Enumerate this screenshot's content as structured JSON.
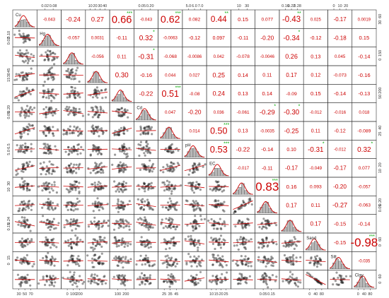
{
  "chart_data": {
    "type": "scatter",
    "variables": [
      "Cu",
      "Hg",
      "",
      "",
      "",
      "Cd",
      "",
      "pH",
      "EC",
      "",
      "",
      "",
      "Sand",
      "Silt",
      "Clay"
    ],
    "correlations": [
      {
        "i": 0,
        "j": 1,
        "value": "-0.043",
        "stars": ""
      },
      {
        "i": 0,
        "j": 2,
        "value": "-0.24",
        "stars": ""
      },
      {
        "i": 0,
        "j": 3,
        "value": "0.27",
        "stars": ""
      },
      {
        "i": 0,
        "j": 4,
        "value": "0.66",
        "stars": "***"
      },
      {
        "i": 0,
        "j": 5,
        "value": "-0.043",
        "stars": ""
      },
      {
        "i": 0,
        "j": 6,
        "value": "0.62",
        "stars": "***"
      },
      {
        "i": 0,
        "j": 7,
        "value": "0.082",
        "stars": ""
      },
      {
        "i": 0,
        "j": 8,
        "value": "0.44",
        "stars": "**"
      },
      {
        "i": 0,
        "j": 9,
        "value": "0.15",
        "stars": ""
      },
      {
        "i": 0,
        "j": 10,
        "value": "0.077",
        "stars": ""
      },
      {
        "i": 0,
        "j": 11,
        "value": "-0.43",
        "stars": "**"
      },
      {
        "i": 0,
        "j": 12,
        "value": "0.025",
        "stars": ""
      },
      {
        "i": 0,
        "j": 13,
        "value": "-0.17",
        "stars": ""
      },
      {
        "i": 0,
        "j": 14,
        "value": "0.0019",
        "stars": ""
      },
      {
        "i": 1,
        "j": 2,
        "value": "-0.057",
        "stars": ""
      },
      {
        "i": 1,
        "j": 3,
        "value": "0.0031",
        "stars": ""
      },
      {
        "i": 1,
        "j": 4,
        "value": "-0.11",
        "stars": ""
      },
      {
        "i": 1,
        "j": 5,
        "value": "0.32",
        "stars": "*"
      },
      {
        "i": 1,
        "j": 6,
        "value": "-0.0063",
        "stars": ""
      },
      {
        "i": 1,
        "j": 7,
        "value": "-0.12",
        "stars": ""
      },
      {
        "i": 1,
        "j": 8,
        "value": "0.097",
        "stars": ""
      },
      {
        "i": 1,
        "j": 9,
        "value": "-0.11",
        "stars": ""
      },
      {
        "i": 1,
        "j": 10,
        "value": "-0.20",
        "stars": ""
      },
      {
        "i": 1,
        "j": 11,
        "value": "-0.34",
        "stars": "*"
      },
      {
        "i": 1,
        "j": 12,
        "value": "-0.12",
        "stars": ""
      },
      {
        "i": 1,
        "j": 13,
        "value": "-0.18",
        "stars": ""
      },
      {
        "i": 1,
        "j": 14,
        "value": "0.15",
        "stars": ""
      },
      {
        "i": 2,
        "j": 3,
        "value": "-0.056",
        "stars": ""
      },
      {
        "i": 2,
        "j": 4,
        "value": "0.11",
        "stars": ""
      },
      {
        "i": 2,
        "j": 5,
        "value": "-0.31",
        "stars": "*"
      },
      {
        "i": 2,
        "j": 6,
        "value": "-0.068",
        "stars": ""
      },
      {
        "i": 2,
        "j": 7,
        "value": "-0.0086",
        "stars": ""
      },
      {
        "i": 2,
        "j": 8,
        "value": "0.042",
        "stars": ""
      },
      {
        "i": 2,
        "j": 9,
        "value": "-0.078",
        "stars": ""
      },
      {
        "i": 2,
        "j": 10,
        "value": "-0.0046",
        "stars": ""
      },
      {
        "i": 2,
        "j": 11,
        "value": "0.26",
        "stars": ""
      },
      {
        "i": 2,
        "j": 12,
        "value": "0.13",
        "stars": ""
      },
      {
        "i": 2,
        "j": 13,
        "value": "0.045",
        "stars": ""
      },
      {
        "i": 2,
        "j": 14,
        "value": "-0.14",
        "stars": ""
      },
      {
        "i": 3,
        "j": 4,
        "value": "0.30",
        "stars": ""
      },
      {
        "i": 3,
        "j": 5,
        "value": "-0.16",
        "stars": ""
      },
      {
        "i": 3,
        "j": 6,
        "value": "0.044",
        "stars": ""
      },
      {
        "i": 3,
        "j": 7,
        "value": "0.027",
        "stars": ""
      },
      {
        "i": 3,
        "j": 8,
        "value": "0.25",
        "stars": ""
      },
      {
        "i": 3,
        "j": 9,
        "value": "0.14",
        "stars": ""
      },
      {
        "i": 3,
        "j": 10,
        "value": "0.11",
        "stars": ""
      },
      {
        "i": 3,
        "j": 11,
        "value": "0.17",
        "stars": ""
      },
      {
        "i": 3,
        "j": 12,
        "value": "0.12",
        "stars": ""
      },
      {
        "i": 3,
        "j": 13,
        "value": "-0.073",
        "stars": ""
      },
      {
        "i": 3,
        "j": 14,
        "value": "-0.16",
        "stars": ""
      },
      {
        "i": 4,
        "j": 5,
        "value": "-0.22",
        "stars": ""
      },
      {
        "i": 4,
        "j": 6,
        "value": "0.51",
        "stars": "***"
      },
      {
        "i": 4,
        "j": 7,
        "value": "-0.08",
        "stars": ""
      },
      {
        "i": 4,
        "j": 8,
        "value": "0.24",
        "stars": ""
      },
      {
        "i": 4,
        "j": 9,
        "value": "0.13",
        "stars": ""
      },
      {
        "i": 4,
        "j": 10,
        "value": "0.14",
        "stars": ""
      },
      {
        "i": 4,
        "j": 11,
        "value": "-0.09",
        "stars": ""
      },
      {
        "i": 4,
        "j": 12,
        "value": "0.15",
        "stars": ""
      },
      {
        "i": 4,
        "j": 13,
        "value": "-0.14",
        "stars": ""
      },
      {
        "i": 4,
        "j": 14,
        "value": "-0.13",
        "stars": ""
      },
      {
        "i": 5,
        "j": 6,
        "value": "0.047",
        "stars": ""
      },
      {
        "i": 5,
        "j": 7,
        "value": "-0.20",
        "stars": ""
      },
      {
        "i": 5,
        "j": 8,
        "value": "0.036",
        "stars": ""
      },
      {
        "i": 5,
        "j": 9,
        "value": "-0.061",
        "stars": ""
      },
      {
        "i": 5,
        "j": 10,
        "value": "-0.29",
        "stars": "*"
      },
      {
        "i": 5,
        "j": 11,
        "value": "-0.30",
        "stars": "*"
      },
      {
        "i": 5,
        "j": 12,
        "value": "-0.012",
        "stars": ""
      },
      {
        "i": 5,
        "j": 13,
        "value": "-0.016",
        "stars": ""
      },
      {
        "i": 5,
        "j": 14,
        "value": "0.018",
        "stars": ""
      },
      {
        "i": 6,
        "j": 7,
        "value": "0.014",
        "stars": ""
      },
      {
        "i": 6,
        "j": 8,
        "value": "0.50",
        "stars": "***"
      },
      {
        "i": 6,
        "j": 9,
        "value": "0.13",
        "stars": ""
      },
      {
        "i": 6,
        "j": 10,
        "value": "-0.0035",
        "stars": ""
      },
      {
        "i": 6,
        "j": 11,
        "value": "-0.25",
        "stars": ""
      },
      {
        "i": 6,
        "j": 12,
        "value": "0.11",
        "stars": ""
      },
      {
        "i": 6,
        "j": 13,
        "value": "-0.12",
        "stars": ""
      },
      {
        "i": 6,
        "j": 14,
        "value": "-0.089",
        "stars": ""
      },
      {
        "i": 7,
        "j": 8,
        "value": "0.53",
        "stars": "***"
      },
      {
        "i": 7,
        "j": 9,
        "value": "-0.22",
        "stars": ""
      },
      {
        "i": 7,
        "j": 10,
        "value": "-0.14",
        "stars": ""
      },
      {
        "i": 7,
        "j": 11,
        "value": "0.10",
        "stars": ""
      },
      {
        "i": 7,
        "j": 12,
        "value": "-0.31",
        "stars": "*"
      },
      {
        "i": 7,
        "j": 13,
        "value": "-0.012",
        "stars": ""
      },
      {
        "i": 7,
        "j": 14,
        "value": "0.32",
        "stars": "*"
      },
      {
        "i": 8,
        "j": 9,
        "value": "-0.017",
        "stars": ""
      },
      {
        "i": 8,
        "j": 10,
        "value": "-0.11",
        "stars": ""
      },
      {
        "i": 8,
        "j": 11,
        "value": "-0.17",
        "stars": ""
      },
      {
        "i": 8,
        "j": 12,
        "value": "-0.049",
        "stars": ""
      },
      {
        "i": 8,
        "j": 13,
        "value": "-0.17",
        "stars": ""
      },
      {
        "i": 8,
        "j": 14,
        "value": "0.077",
        "stars": ""
      },
      {
        "i": 9,
        "j": 10,
        "value": "0.83",
        "stars": "***"
      },
      {
        "i": 9,
        "j": 11,
        "value": "0.16",
        "stars": ""
      },
      {
        "i": 9,
        "j": 12,
        "value": "0.093",
        "stars": ""
      },
      {
        "i": 9,
        "j": 13,
        "value": "-0.20",
        "stars": ""
      },
      {
        "i": 9,
        "j": 14,
        "value": "-0.057",
        "stars": ""
      },
      {
        "i": 10,
        "j": 11,
        "value": "0.17",
        "stars": ""
      },
      {
        "i": 10,
        "j": 12,
        "value": "0.11",
        "stars": ""
      },
      {
        "i": 10,
        "j": 13,
        "value": "-0.27",
        "stars": ""
      },
      {
        "i": 10,
        "j": 14,
        "value": "-0.063",
        "stars": ""
      },
      {
        "i": 11,
        "j": 12,
        "value": "0.17",
        "stars": ""
      },
      {
        "i": 11,
        "j": 13,
        "value": "-0.15",
        "stars": ""
      },
      {
        "i": 11,
        "j": 14,
        "value": "-0.14",
        "stars": ""
      },
      {
        "i": 12,
        "j": 13,
        "value": "-0.15",
        "stars": ""
      },
      {
        "i": 12,
        "j": 14,
        "value": "-0.98",
        "stars": "***"
      },
      {
        "i": 13,
        "j": 14,
        "value": "-0.035",
        "stars": ""
      }
    ],
    "axes": {
      "top": [
        {
          "col": 1,
          "ticks": [
            "0.02",
            "0.08"
          ]
        },
        {
          "col": 3,
          "ticks": [
            "10",
            "20",
            "30",
            "40"
          ]
        },
        {
          "col": 5,
          "ticks": [
            "0.05",
            "0.20"
          ]
        },
        {
          "col": 7,
          "ticks": [
            "5.0",
            "6.0",
            "7.0"
          ]
        },
        {
          "col": 9,
          "ticks": [
            "10",
            "30"
          ]
        },
        {
          "col": 11,
          "ticks": [
            "0.16",
            "0.22",
            "0.28"
          ]
        },
        {
          "col": 13,
          "ticks": [
            "0",
            "10",
            "20"
          ]
        }
      ],
      "bottom": [
        {
          "col": 0,
          "ticks": [
            "30",
            "50",
            "70"
          ]
        },
        {
          "col": 2,
          "ticks": [
            "0",
            "100",
            "200"
          ]
        },
        {
          "col": 4,
          "ticks": [
            "100",
            "200"
          ]
        },
        {
          "col": 6,
          "ticks": [
            "25",
            "35",
            "45"
          ]
        },
        {
          "col": 8,
          "ticks": [
            "10",
            "15",
            "20",
            "25"
          ]
        },
        {
          "col": 10,
          "ticks": [
            "0.05",
            "0.15"
          ]
        },
        {
          "col": 12,
          "ticks": [
            "0",
            "40",
            "80"
          ]
        },
        {
          "col": 14,
          "ticks": [
            "0",
            "40",
            "80"
          ]
        }
      ],
      "left": [
        {
          "row": 1,
          "ticks": [
            "0.02",
            "0.10"
          ]
        },
        {
          "row": 3,
          "ticks": [
            "15",
            "30",
            "45"
          ]
        },
        {
          "row": 5,
          "ticks": [
            "0.05",
            "0.20"
          ]
        },
        {
          "row": 7,
          "ticks": [
            "5.0",
            "6.5"
          ]
        },
        {
          "row": 9,
          "ticks": [
            "10",
            "30"
          ]
        },
        {
          "row": 11,
          "ticks": [
            "0.15",
            "0.24"
          ]
        },
        {
          "row": 13,
          "ticks": [
            "0",
            "15"
          ]
        }
      ],
      "right": [
        {
          "row": 0,
          "ticks": [
            "30",
            "60"
          ]
        },
        {
          "row": 2,
          "ticks": [
            "0",
            "150"
          ]
        },
        {
          "row": 4,
          "ticks": [
            "50",
            "200"
          ]
        },
        {
          "row": 6,
          "ticks": [
            "25",
            "40"
          ]
        },
        {
          "row": 8,
          "ticks": [
            "10",
            "20"
          ]
        },
        {
          "row": 10,
          "ticks": [
            "0.05",
            "0.20"
          ]
        },
        {
          "row": 12,
          "ticks": [
            "0",
            "60"
          ]
        },
        {
          "row": 14,
          "ticks": [
            "0",
            "60"
          ]
        }
      ]
    },
    "grid": false,
    "legend": "none",
    "colors": {
      "correlation_text": "#cc0000",
      "stars": "#00aa00",
      "points": "#222222",
      "histogram_fill": "#b8b8b8",
      "density_line": "#cc0000",
      "smooth_line": "#cc0000",
      "cell_border": "#333333"
    }
  }
}
